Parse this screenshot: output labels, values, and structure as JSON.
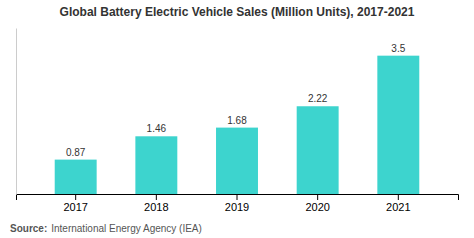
{
  "chart_data": {
    "type": "bar",
    "title": "Global Battery Electric Vehicle Sales (Million Units), 2017-2021",
    "categories": [
      "2017",
      "2018",
      "2019",
      "2020",
      "2021"
    ],
    "values": [
      0.87,
      1.46,
      1.68,
      2.22,
      3.5
    ],
    "color": "#3DD4CE",
    "ylim": [
      0,
      4.2
    ],
    "grid": false,
    "data_labels": true,
    "tick_labels": "x",
    "annotations": [
      "Source:",
      "International Energy Agency (IEA)"
    ]
  }
}
